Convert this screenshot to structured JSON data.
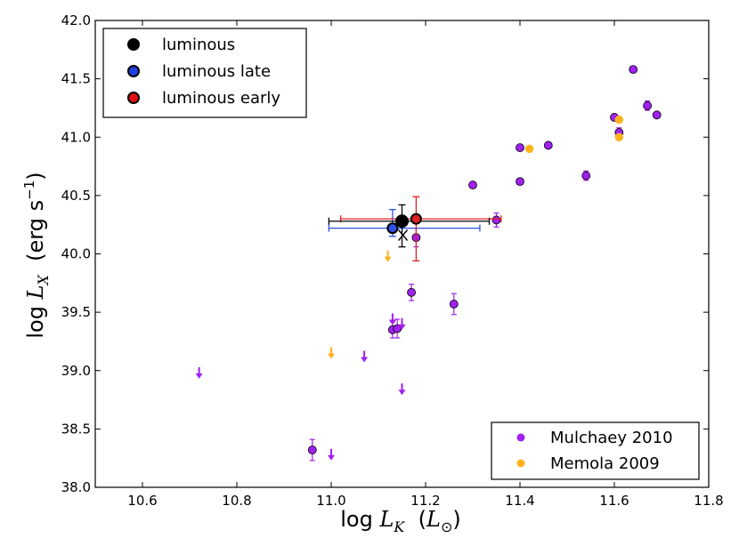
{
  "chart_data": {
    "type": "scatter",
    "xlabel": {
      "prefix": "log ",
      "var": "L",
      "sub": "K",
      "unit_open": "  (",
      "unit_var": "L",
      "unit_sub": "⊙",
      "unit_close": ")"
    },
    "ylabel": {
      "prefix": "log ",
      "var": "L",
      "sub": "X",
      "unit_open": "  (erg s",
      "unit_sup": "−1",
      "unit_close": ")"
    },
    "xlim": [
      10.5,
      11.8
    ],
    "ylim": [
      38.0,
      42.0
    ],
    "xticks": [
      "10.6",
      "10.8",
      "11.0",
      "11.2",
      "11.4",
      "11.6",
      "11.8"
    ],
    "yticks": [
      "38.0",
      "38.5",
      "39.0",
      "39.5",
      "40.0",
      "40.5",
      "41.0",
      "41.5",
      "42.0"
    ],
    "colors": {
      "mulchaey": "#a020f0",
      "memola": "#ffb21d",
      "black": "#000000",
      "blue": "#3050e8",
      "red": "#e02020"
    },
    "legend_top": [
      {
        "label": "luminous",
        "face": "#000000"
      },
      {
        "label": "luminous late",
        "face": "#1f3fe0"
      },
      {
        "label": "luminous early",
        "face": "#e01010"
      }
    ],
    "legend_bottom": [
      {
        "label": "Mulchaey 2010",
        "color": "#a020f0"
      },
      {
        "label": "Memola 2009",
        "color": "#ffb21d"
      }
    ],
    "mulchaey_points": [
      {
        "x": 10.96,
        "y": 38.32,
        "yerr": 0.09
      },
      {
        "x": 11.13,
        "y": 39.35,
        "yerr": 0.07
      },
      {
        "x": 11.14,
        "y": 39.36,
        "yerr": 0.08
      },
      {
        "x": 11.17,
        "y": 39.67,
        "yerr": 0.07
      },
      {
        "x": 11.18,
        "y": 40.14,
        "yerr": 0.08
      },
      {
        "x": 11.26,
        "y": 39.57,
        "yerr": 0.09
      },
      {
        "x": 11.3,
        "y": 40.59,
        "yerr": 0
      },
      {
        "x": 11.35,
        "y": 40.29,
        "yerr": 0.06
      },
      {
        "x": 11.4,
        "y": 40.91,
        "yerr": 0
      },
      {
        "x": 11.4,
        "y": 40.62,
        "yerr": 0
      },
      {
        "x": 11.46,
        "y": 40.93,
        "yerr": 0
      },
      {
        "x": 11.54,
        "y": 40.67,
        "yerr": 0.04
      },
      {
        "x": 11.6,
        "y": 41.17,
        "yerr": 0
      },
      {
        "x": 11.61,
        "y": 41.04,
        "yerr": 0.04
      },
      {
        "x": 11.64,
        "y": 41.58,
        "yerr": 0
      },
      {
        "x": 11.67,
        "y": 41.27,
        "yerr": 0.04
      },
      {
        "x": 11.69,
        "y": 41.19,
        "yerr": 0
      }
    ],
    "mulchaey_upper_limits": [
      {
        "x": 10.72,
        "y": 39.03
      },
      {
        "x": 11.0,
        "y": 38.33
      },
      {
        "x": 11.07,
        "y": 39.17
      },
      {
        "x": 11.13,
        "y": 39.49
      },
      {
        "x": 11.15,
        "y": 39.45
      },
      {
        "x": 11.15,
        "y": 38.89
      }
    ],
    "memola_points": [
      {
        "x": 11.42,
        "y": 40.9
      },
      {
        "x": 11.61,
        "y": 41.15
      },
      {
        "x": 11.61,
        "y": 41.0
      }
    ],
    "memola_upper_limits": [
      {
        "x": 11.0,
        "y": 39.2
      },
      {
        "x": 11.12,
        "y": 40.03
      }
    ],
    "luminous_points": [
      {
        "group": "late",
        "x": 11.13,
        "y": 40.22,
        "xerr_lo": 0.135,
        "xerr_hi": 0.185,
        "yerr_lo": 0.07,
        "yerr_hi": 0.16
      },
      {
        "group": "all",
        "x": 11.15,
        "y": 40.28,
        "xerr_lo": 0.155,
        "xerr_hi": 0.185,
        "yerr_lo": 0.22,
        "yerr_hi": 0.14
      },
      {
        "group": "early",
        "x": 11.18,
        "y": 40.3,
        "xerr_lo": 0.16,
        "xerr_hi": 0.18,
        "yerr_lo": 0.36,
        "yerr_hi": 0.19
      }
    ],
    "median_marker": {
      "x": 11.152,
      "y": 40.16
    }
  }
}
